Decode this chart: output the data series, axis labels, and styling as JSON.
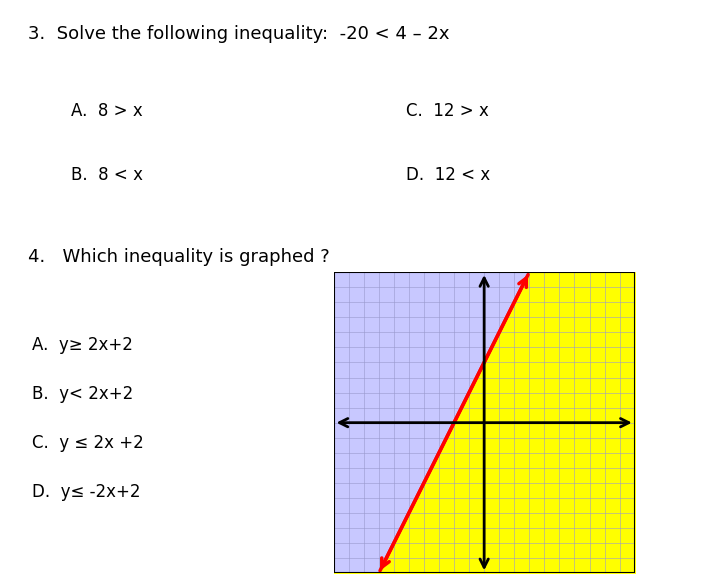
{
  "title_q3": "3.  Solve the following inequality:  -20 < 4 – 2x",
  "q3_options": [
    [
      "A.  8 > x",
      "C.  12 > x"
    ],
    [
      "B.  8 < x",
      "D.  12 < x"
    ]
  ],
  "title_q4": "4.   Which inequality is graphed ?",
  "q4_options": [
    "A.  y≥ 2x+2",
    "B.  y< 2x+2",
    "C.  y ≤ 2x +2",
    "D.  y≤ -2x+2"
  ],
  "background_color": "#ffffff",
  "blue_shade": "#c8c8ff",
  "yellow_shade": "#ffff00",
  "line_color": "#ff0000",
  "axis_color": "#000000",
  "grid_color_blue": "#aaaadd",
  "grid_color_yellow": "#cccc00",
  "graph_xlim": [
    -5,
    5
  ],
  "graph_ylim": [
    -5,
    5
  ],
  "slope": 2,
  "intercept": 2,
  "font_size_q": 13,
  "font_size_options": 12
}
